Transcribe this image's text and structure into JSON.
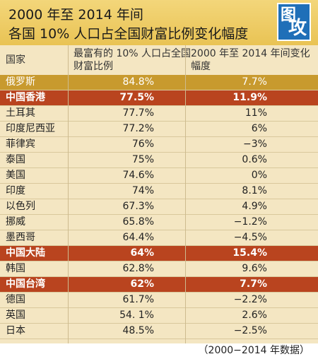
{
  "title": {
    "line1": "2000 年至 2014 年间",
    "line2": "各国 10% 人口占全国财富比例变化幅度"
  },
  "logo": {
    "big": "图",
    "big2": "攻"
  },
  "table": {
    "headers": [
      "国家",
      "最富有的 10% 人口占全国财富比例",
      "2000 年至 2014 年间变化幅度"
    ],
    "rows": [
      {
        "country": "俄罗斯",
        "share": "84.8%",
        "change": "7.7%",
        "style": "gold"
      },
      {
        "country": "中国香港",
        "share": "77.5%",
        "change": "11.9%",
        "style": "red"
      },
      {
        "country": "土耳其",
        "share": "77.7%",
        "change": "11%",
        "style": ""
      },
      {
        "country": "印度尼西亚",
        "share": "77.2%",
        "change": "6%",
        "style": ""
      },
      {
        "country": "菲律宾",
        "share": "76%",
        "change": "−3%",
        "style": ""
      },
      {
        "country": "泰国",
        "share": "75%",
        "change": "0.6%",
        "style": ""
      },
      {
        "country": "美国",
        "share": "74.6%",
        "change": "0%",
        "style": ""
      },
      {
        "country": "印度",
        "share": "74%",
        "change": "8.1%",
        "style": ""
      },
      {
        "country": "以色列",
        "share": "67.3%",
        "change": "4.9%",
        "style": ""
      },
      {
        "country": "挪威",
        "share": "65.8%",
        "change": "−1.2%",
        "style": ""
      },
      {
        "country": "墨西哥",
        "share": "64.4%",
        "change": "−4.5%",
        "style": ""
      },
      {
        "country": "中国大陆",
        "share": "64%",
        "change": "15.4%",
        "style": "red"
      },
      {
        "country": "韩国",
        "share": "62.8%",
        "change": "9.6%",
        "style": ""
      },
      {
        "country": "中国台湾",
        "share": "62%",
        "change": "7.7%",
        "style": "red"
      },
      {
        "country": "德国",
        "share": "61.7%",
        "change": "−2.2%",
        "style": ""
      },
      {
        "country": "英国",
        "share": "54. 1%",
        "change": "2.6%",
        "style": ""
      },
      {
        "country": "日本",
        "share": "48.5%",
        "change": "−2.5%",
        "style": ""
      }
    ]
  },
  "footer": "（2000−2014 年数据）",
  "colors": {
    "header_bg": "#e9c354",
    "table_bg": "#f4e6c2",
    "gold": "#c89a2e",
    "red": "#b9441f"
  }
}
